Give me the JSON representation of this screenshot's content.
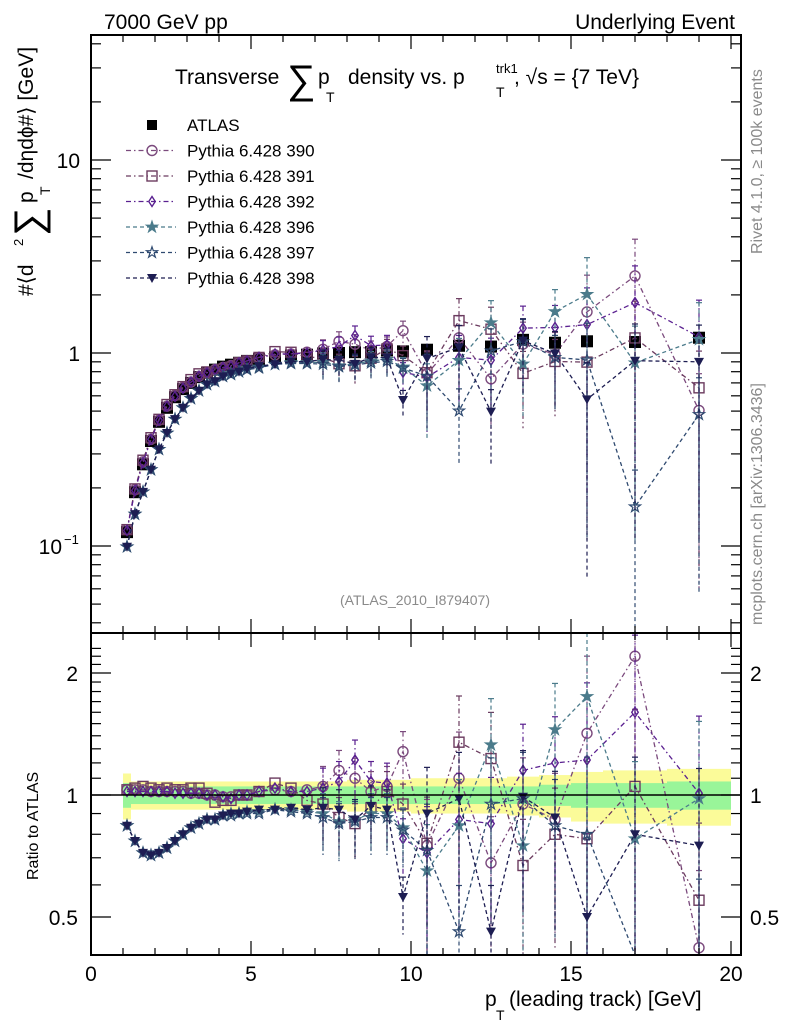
{
  "header": {
    "left": "7000 GeV pp",
    "right": "Underlying Event"
  },
  "side_labels": {
    "rivet": "Rivet 4.1.0, ≥ 100k events",
    "source": "mcplots.cern.ch [arXiv:1306.3436]"
  },
  "chart_data": [
    {
      "type": "scatter",
      "panel": "main",
      "title_parts": {
        "prefix": "Transverse",
        "sum": "∑",
        "p": "p",
        "sub_T": "T",
        "mid": "density vs. p",
        "sup_trk1": "trk1",
        "tail": ", √s = {7 TeV}"
      },
      "ylabel_parts": {
        "prefix": "#⟨d",
        "sup2": "2",
        "sum": "∑",
        "p": "p",
        "sub_T": "T",
        "tail": "/dηdϕ#⟩ [GeV]"
      },
      "yscale": "log",
      "ylim": [
        0.035,
        50
      ],
      "xlim": [
        0,
        20.3
      ],
      "yticks": [
        {
          "v": 0.1,
          "label": "10",
          "sup": "−1"
        },
        {
          "v": 1,
          "label": "1",
          "sup": ""
        },
        {
          "v": 10,
          "label": "10",
          "sup": ""
        }
      ],
      "annotation": "(ATLAS_2010_I879407)",
      "legend_position": "top-left",
      "x": [
        1.125,
        1.375,
        1.625,
        1.875,
        2.125,
        2.375,
        2.625,
        2.875,
        3.125,
        3.375,
        3.625,
        3.875,
        4.125,
        4.375,
        4.625,
        4.875,
        5.25,
        5.75,
        6.25,
        6.75,
        7.25,
        7.75,
        8.25,
        8.75,
        9.25,
        9.75,
        10.5,
        11.5,
        12.5,
        13.5,
        14.5,
        15.5,
        17,
        19
      ],
      "series": [
        {
          "name": "ATLAS",
          "marker": "filled-square",
          "color": "#000000",
          "line": "none",
          "values": [
            0.118,
            0.19,
            0.265,
            0.35,
            0.44,
            0.52,
            0.59,
            0.65,
            0.7,
            0.75,
            0.79,
            0.82,
            0.85,
            0.87,
            0.89,
            0.91,
            0.93,
            0.95,
            0.97,
            0.98,
            0.995,
            1.0,
            1.01,
            1.01,
            1.03,
            1.02,
            1.04,
            1.09,
            1.08,
            1.17,
            1.13,
            1.15,
            1.14,
            1.2
          ]
        },
        {
          "name": "Pythia 6.428 390",
          "marker": "open-circle",
          "color": "#7b4a7d",
          "line": "dashdot",
          "ratio": [
            1.03,
            1.03,
            1.03,
            1.02,
            1.02,
            1.02,
            1.02,
            1.02,
            1.01,
            1.01,
            1.0,
            1.0,
            0.99,
            0.99,
            1.0,
            1.0,
            1.02,
            1.03,
            1.02,
            1.03,
            1.05,
            1.15,
            1.1,
            1.02,
            1.05,
            1.28,
            0.75,
            1.1,
            0.68,
            0.95,
            0.87,
            1.42,
            2.2,
            0.42
          ]
        },
        {
          "name": "Pythia 6.428 391",
          "marker": "open-square",
          "color": "#6b3b5f",
          "line": "dashdot",
          "ratio": [
            1.03,
            1.04,
            1.05,
            1.04,
            1.03,
            1.04,
            1.03,
            1.03,
            1.04,
            1.04,
            1.01,
            0.96,
            0.97,
            0.97,
            1.0,
            1.0,
            1.02,
            1.07,
            1.04,
            0.97,
            0.95,
            0.88,
            0.85,
            0.93,
            1.02,
            0.95,
            0.76,
            1.35,
            1.23,
            0.67,
            0.8,
            0.78,
            1.05,
            0.55
          ]
        },
        {
          "name": "Pythia 6.428 392",
          "marker": "open-diamond",
          "color": "#5a2090",
          "line": "dashdot",
          "ratio": [
            1.02,
            1.02,
            1.02,
            1.02,
            1.02,
            1.02,
            1.01,
            1.01,
            1.01,
            1.01,
            1.0,
            1.0,
            0.99,
            0.98,
            1.0,
            1.0,
            1.02,
            1.04,
            1.02,
            1.02,
            1.04,
            1.08,
            1.22,
            1.08,
            1.07,
            0.78,
            0.72,
            0.87,
            0.85,
            1.15,
            1.2,
            1.22,
            1.6,
            1.01
          ]
        },
        {
          "name": "Pythia 6.428 396",
          "marker": "filled-star",
          "color": "#4b7b8b",
          "line": "dashed",
          "ratio": [
            0.84,
            0.77,
            0.72,
            0.71,
            0.72,
            0.74,
            0.77,
            0.8,
            0.83,
            0.85,
            0.87,
            0.87,
            0.89,
            0.9,
            0.9,
            0.91,
            0.91,
            0.92,
            0.92,
            0.91,
            0.9,
            0.86,
            0.87,
            0.9,
            0.9,
            0.83,
            0.65,
            0.84,
            1.33,
            0.75,
            1.45,
            1.75,
            0.78,
            0.98
          ]
        },
        {
          "name": "Pythia 6.428 397",
          "marker": "open-star",
          "color": "#2f4a70",
          "line": "dashed",
          "ratio": [
            0.84,
            0.77,
            0.72,
            0.71,
            0.72,
            0.74,
            0.77,
            0.8,
            0.83,
            0.85,
            0.87,
            0.87,
            0.89,
            0.89,
            0.9,
            0.9,
            0.9,
            0.92,
            0.91,
            0.9,
            0.88,
            0.85,
            0.86,
            0.88,
            0.88,
            0.82,
            0.73,
            0.46,
            0.95,
            0.98,
            0.84,
            0.8,
            0.14,
            0.4
          ]
        },
        {
          "name": "Pythia 6.428 398",
          "marker": "filled-triangle-down",
          "color": "#1d1d52",
          "line": "dashed",
          "ratio": [
            0.84,
            0.77,
            0.72,
            0.71,
            0.72,
            0.74,
            0.77,
            0.8,
            0.83,
            0.85,
            0.87,
            0.87,
            0.89,
            0.9,
            0.9,
            0.91,
            0.92,
            0.92,
            0.93,
            0.92,
            0.93,
            0.92,
            0.87,
            0.94,
            0.92,
            0.56,
            0.9,
            0.98,
            0.46,
            0.99,
            0.88,
            0.5,
            0.8,
            0.75
          ]
        }
      ]
    },
    {
      "type": "scatter",
      "panel": "ratio",
      "ylabel": "Ratio to ATLAS",
      "yscale": "log",
      "ylim": [
        0.35,
        2.4
      ],
      "yticks": [
        {
          "v": 0.5,
          "label": "0.5"
        },
        {
          "v": 1,
          "label": "1"
        },
        {
          "v": 2,
          "label": "2"
        }
      ],
      "xlabel_parts": {
        "p": "p",
        "sub_T": "T",
        "tail": " (leading track) [GeV]"
      },
      "xticks": [
        0,
        5,
        10,
        15,
        20
      ],
      "xlim": [
        0,
        20.3
      ],
      "band_edges": [
        1,
        1.25,
        2,
        3,
        4,
        5,
        6,
        7,
        8,
        9,
        10,
        11,
        12,
        13,
        14,
        15,
        16,
        18,
        20
      ],
      "band_inner": [
        0.07,
        0.05,
        0.05,
        0.05,
        0.05,
        0.05,
        0.05,
        0.05,
        0.05,
        0.05,
        0.05,
        0.05,
        0.05,
        0.05,
        0.06,
        0.07,
        0.07,
        0.08
      ],
      "band_outer": [
        0.13,
        0.08,
        0.08,
        0.08,
        0.08,
        0.08,
        0.08,
        0.08,
        0.09,
        0.09,
        0.1,
        0.1,
        0.1,
        0.11,
        0.12,
        0.14,
        0.15,
        0.16
      ],
      "band_colors": {
        "inner": "#99f599",
        "outer": "#fbfb99"
      }
    }
  ]
}
